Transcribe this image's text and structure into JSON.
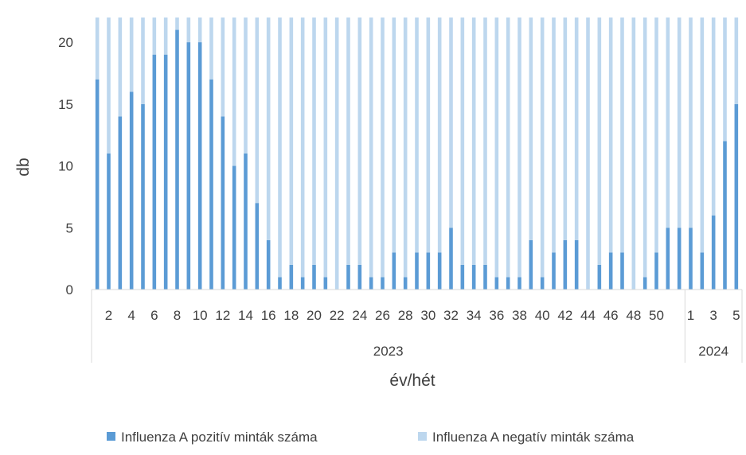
{
  "chart_data": {
    "type": "bar",
    "stacked": true,
    "xlabel": "év/hét",
    "ylabel": "db",
    "ylim": [
      0,
      22
    ],
    "yticks": [
      0,
      5,
      10,
      15,
      20
    ],
    "grid": false,
    "legend_position": "bottom",
    "groups": [
      {
        "label": "2023",
        "weeks": [
          1,
          2,
          3,
          4,
          5,
          6,
          7,
          8,
          9,
          10,
          11,
          12,
          13,
          14,
          15,
          16,
          17,
          18,
          19,
          20,
          21,
          22,
          23,
          24,
          25,
          26,
          27,
          28,
          29,
          30,
          31,
          32,
          33,
          34,
          35,
          36,
          37,
          38,
          39,
          40,
          41,
          42,
          43,
          44,
          45,
          46,
          47,
          48,
          49,
          50,
          51,
          52
        ]
      },
      {
        "label": "2024",
        "weeks": [
          1,
          2,
          3,
          4,
          5
        ]
      }
    ],
    "tick_labels": [
      "2",
      "4",
      "6",
      "8",
      "10",
      "12",
      "14",
      "16",
      "18",
      "20",
      "22",
      "24",
      "26",
      "28",
      "30",
      "32",
      "34",
      "36",
      "38",
      "40",
      "42",
      "44",
      "46",
      "48",
      "50",
      "1",
      "3",
      "5"
    ],
    "series": [
      {
        "name": "Influenza A pozitív minták száma",
        "color": "#5b9bd5",
        "values": [
          17,
          11,
          14,
          16,
          15,
          19,
          19,
          21,
          20,
          20,
          17,
          14,
          10,
          11,
          7,
          4,
          1,
          2,
          1,
          2,
          1,
          0,
          2,
          2,
          1,
          1,
          3,
          1,
          3,
          3,
          3,
          5,
          2,
          2,
          2,
          1,
          1,
          1,
          4,
          1,
          3,
          4,
          4,
          0,
          2,
          3,
          3,
          0,
          1,
          3,
          5,
          5,
          5,
          3,
          6,
          12,
          15
        ]
      },
      {
        "name": "Influenza A negatív minták száma",
        "color": "#bdd7ee",
        "values": [
          5,
          11,
          8,
          6,
          7,
          3,
          3,
          1,
          2,
          2,
          5,
          8,
          12,
          11,
          15,
          18,
          21,
          20,
          21,
          20,
          21,
          22,
          20,
          20,
          21,
          21,
          19,
          21,
          19,
          19,
          19,
          17,
          20,
          20,
          20,
          21,
          21,
          21,
          18,
          21,
          19,
          18,
          18,
          22,
          20,
          19,
          19,
          22,
          21,
          19,
          17,
          17,
          17,
          19,
          16,
          10,
          7
        ]
      }
    ]
  }
}
